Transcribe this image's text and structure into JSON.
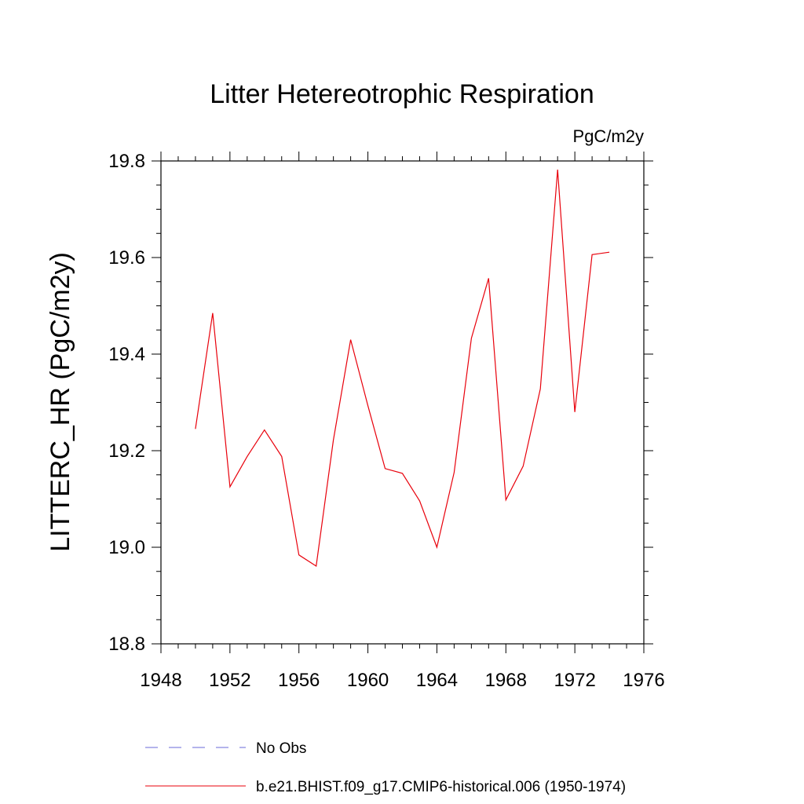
{
  "chart_data": {
    "type": "line",
    "title": "Litter Hetereotrophic Respiration",
    "units_label": "PgC/m2y",
    "ylabel": "LITTERC_HR  (PgC/m2y)",
    "xlabel": "",
    "xlim": [
      1948,
      1976
    ],
    "ylim": [
      18.8,
      19.8
    ],
    "x_ticks": [
      "1948",
      "1952",
      "1956",
      "1960",
      "1964",
      "1968",
      "1972",
      "1976"
    ],
    "y_ticks": [
      "18.8",
      "19.0",
      "19.2",
      "19.4",
      "19.6",
      "19.8"
    ],
    "grid": false,
    "legend_position": "bottom",
    "series": [
      {
        "name": "b.e21.BHIST.f09_g17.CMIP6-historical.006 (1950-1974)",
        "color": "#e8000b",
        "style": "solid",
        "x": [
          1950,
          1951,
          1952,
          1953,
          1954,
          1955,
          1956,
          1957,
          1958,
          1959,
          1960,
          1961,
          1962,
          1963,
          1964,
          1965,
          1966,
          1967,
          1968,
          1969,
          1970,
          1971,
          1972,
          1973,
          1974
        ],
        "values": [
          19.245,
          19.485,
          19.125,
          19.188,
          19.243,
          19.188,
          18.984,
          18.961,
          19.222,
          19.43,
          19.293,
          19.163,
          19.153,
          19.096,
          19.0,
          19.155,
          19.433,
          19.557,
          19.098,
          19.168,
          19.328,
          19.782,
          19.28,
          19.606,
          19.611
        ]
      },
      {
        "name": "No Obs",
        "color": "#6a6ad8",
        "style": "dashed",
        "x": [],
        "values": []
      }
    ]
  }
}
